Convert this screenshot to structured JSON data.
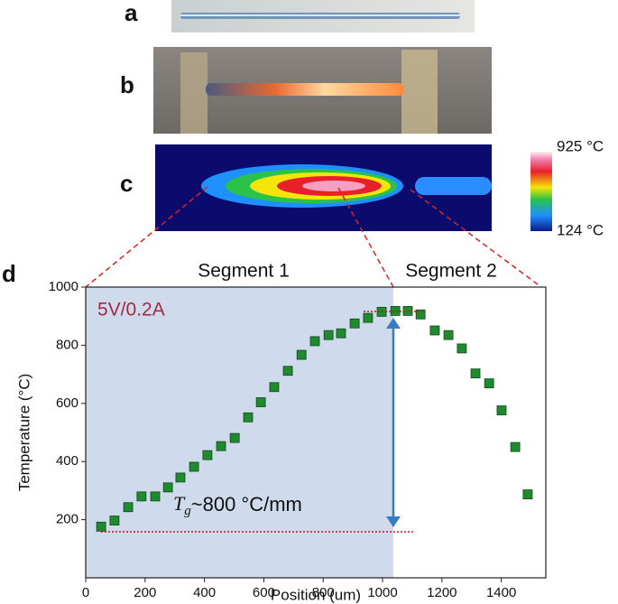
{
  "panels": {
    "a": "a",
    "b": "b",
    "c": "c",
    "d": "d"
  },
  "colorbar": {
    "max_label": "925 °C",
    "min_label": "124 °C"
  },
  "chart_data": {
    "type": "scatter",
    "xlabel": "Position (um)",
    "ylabel": "Temperature (°C)",
    "segments": [
      "Segment 1",
      "Segment 2"
    ],
    "condition": "5V/0.2A",
    "gradient_label": {
      "symbol": "T",
      "subscript": "g",
      "text": "~800 °C/mm"
    },
    "color": "#1f8a2e",
    "x": [
      52,
      97,
      143,
      188,
      234,
      277,
      319,
      365,
      410,
      456,
      502,
      547,
      590,
      635,
      681,
      727,
      772,
      818,
      860,
      906,
      951,
      997,
      1043,
      1085,
      1128,
      1176,
      1222,
      1267,
      1313,
      1359,
      1401,
      1447,
      1489
    ],
    "values": [
      176,
      197,
      243,
      280,
      280,
      311,
      345,
      382,
      422,
      453,
      481,
      552,
      604,
      656,
      712,
      767,
      814,
      835,
      841,
      875,
      894,
      915,
      918,
      918,
      906,
      851,
      835,
      789,
      703,
      669,
      576,
      450,
      287
    ],
    "xlim": [
      0,
      1550
    ],
    "ylim": [
      0,
      1000
    ],
    "xticks": [
      0,
      200,
      400,
      600,
      800,
      1000,
      1200,
      1400
    ],
    "yticks": [
      200,
      400,
      600,
      800,
      1000
    ]
  }
}
